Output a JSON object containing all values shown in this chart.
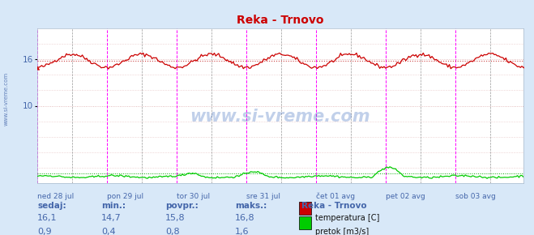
{
  "title": "Reka - Trnovo",
  "title_color": "#cc0000",
  "bg_color": "#d8e8f8",
  "plot_bg_color": "#ffffff",
  "n_points": 336,
  "temp_min": 14.7,
  "temp_max": 16.8,
  "temp_avg": 15.8,
  "flow_min": 0.4,
  "flow_max": 1.6,
  "flow_avg": 0.8,
  "ylim_min": 0,
  "ylim_max": 20,
  "ytick_positions": [
    10,
    16
  ],
  "ytick_labels": [
    "10",
    "16"
  ],
  "x_day_labels": [
    "ned 28 jul",
    "pon 29 jul",
    "tor 30 jul",
    "sre 31 jul",
    "čet 01 avg",
    "pet 02 avg",
    "sob 03 avg"
  ],
  "x_day_positions": [
    0,
    48,
    96,
    144,
    192,
    240,
    288
  ],
  "magenta_vlines": [
    0,
    48,
    96,
    144,
    192,
    240,
    288,
    335
  ],
  "gray_vlines": [
    24,
    72,
    120,
    168,
    216,
    264,
    312
  ],
  "hgrid_positions": [
    2,
    4,
    6,
    8,
    10,
    12,
    14,
    16,
    18
  ],
  "temp_color": "#cc0000",
  "flow_color": "#00cc00",
  "avg_temp_color": "#cc4444",
  "avg_flow_color": "#00aa00",
  "xlabel_color": "#4466aa",
  "sidebar_color": "#4466aa",
  "watermark_color": "#3366bb",
  "watermark": "www.si-vreme.com",
  "sidebar_text": "www.si-vreme.com",
  "legend_title": "Reka - Trnovo",
  "legend_temp": "temperatura [C]",
  "legend_flow": "pretok [m3/s]",
  "stats_label_color": "#4466aa",
  "stats_value_color": "#4466aa",
  "stats_sedaj_temp": "16,1",
  "stats_min_temp": "14,7",
  "stats_avg_temp": "15,8",
  "stats_max_temp": "16,8",
  "stats_sedaj_flow": "0,9",
  "stats_min_flow": "0,4",
  "stats_avg_flow": "0,8",
  "stats_max_flow": "1,6"
}
